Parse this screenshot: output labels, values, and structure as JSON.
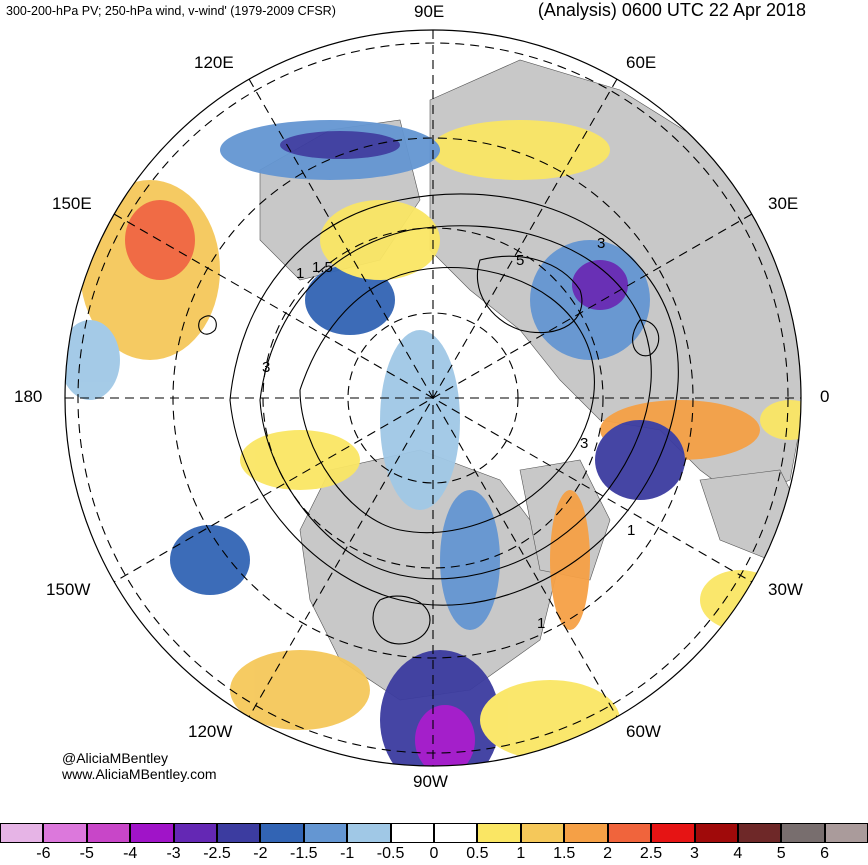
{
  "header": {
    "left_title": "300-200-hPa PV; 250-hPa wind, v-wind' (1979-2009 CFSR)",
    "right_title": "(Analysis) 0600 UTC 22 Apr 2018"
  },
  "credits": {
    "twitter": "@AliciaMBentley",
    "website": "www.AliciaMBentley.com"
  },
  "map": {
    "projection": "north-polar-stereographic",
    "land_color": "#c8c8c8",
    "ocean_color": "#ffffff",
    "contour_color": "#000000",
    "longitude_labels": [
      "90E",
      "60E",
      "30E",
      "0",
      "30W",
      "60W",
      "90W",
      "120W",
      "150W",
      "180",
      "150E",
      "120E"
    ],
    "pv_contour_labels": [
      "1",
      "3",
      "5",
      "1.5",
      "3",
      "1",
      "3",
      "1"
    ],
    "shading_levels": [
      "-6",
      "-5",
      "-4",
      "-3",
      "-2.5",
      "-2",
      "-1.5",
      "-1",
      "-0.5",
      "0",
      "0.5",
      "1",
      "1.5",
      "2",
      "2.5",
      "3",
      "4",
      "5",
      "6"
    ]
  },
  "colorbar": {
    "colors": [
      "#e6b4e6",
      "#dc78dc",
      "#c846c8",
      "#a014c8",
      "#6428b4",
      "#3c3ca0",
      "#3264b4",
      "#6496d2",
      "#a0c8e6",
      "#ffffff",
      "#ffffff",
      "#fae664",
      "#f5c85a",
      "#f5a046",
      "#f0643c",
      "#e61414",
      "#a00a0a",
      "#6e2828",
      "#786e6e",
      "#aa9b9b"
    ],
    "ticks": [
      "-6",
      "-5",
      "-4",
      "-3",
      "-2.5",
      "-2",
      "-1.5",
      "-1",
      "-0.5",
      "0",
      "0.5",
      "1",
      "1.5",
      "2",
      "2.5",
      "3",
      "4",
      "5",
      "6"
    ]
  }
}
